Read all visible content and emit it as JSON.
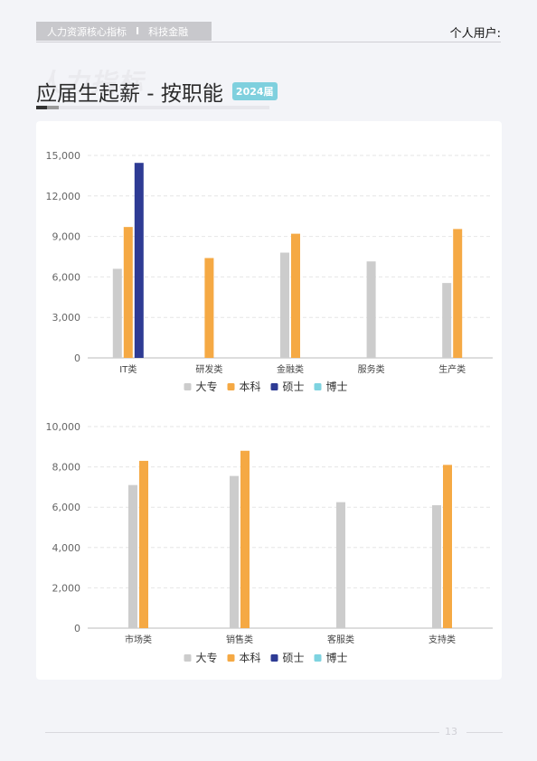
{
  "header": {
    "tag_left": "人力资源核心指标",
    "tag_sep": "I",
    "tag_right": "科技金融",
    "user_label": "个人用户:"
  },
  "watermark": "人力指标",
  "page_title": "应届生起薪 - 按职能",
  "year_badge": "2024届",
  "page_number": "13",
  "colors": {
    "大专": "#cccccc",
    "本科": "#f5a944",
    "硕士": "#2e3b94",
    "博士": "#7ed3e0"
  },
  "chart_data": [
    {
      "type": "bar",
      "categories": [
        "IT类",
        "研发类",
        "金融类",
        "服务类",
        "生产类"
      ],
      "series": [
        {
          "name": "大专",
          "values": [
            6600,
            null,
            7800,
            7150,
            5550
          ]
        },
        {
          "name": "本科",
          "values": [
            9700,
            7400,
            9200,
            null,
            9550
          ]
        },
        {
          "name": "硕士",
          "values": [
            14450,
            null,
            null,
            null,
            null
          ]
        },
        {
          "name": "博士",
          "values": [
            null,
            null,
            null,
            null,
            null
          ]
        }
      ],
      "ylim": [
        0,
        15000
      ],
      "yticks": [
        "0",
        "3,000",
        "6,000",
        "9,000",
        "12,000",
        "15,000"
      ],
      "legend": "bottom-center",
      "grid": true
    },
    {
      "type": "bar",
      "categories": [
        "市场类",
        "销售类",
        "客服类",
        "支持类"
      ],
      "series": [
        {
          "name": "大专",
          "values": [
            7100,
            7550,
            6250,
            6100
          ]
        },
        {
          "name": "本科",
          "values": [
            8300,
            8800,
            null,
            8100
          ]
        },
        {
          "name": "硕士",
          "values": [
            null,
            null,
            null,
            null
          ]
        },
        {
          "name": "博士",
          "values": [
            null,
            null,
            null,
            null
          ]
        }
      ],
      "ylim": [
        0,
        10000
      ],
      "yticks": [
        "0",
        "2,000",
        "4,000",
        "6,000",
        "8,000",
        "10,000"
      ],
      "legend": "bottom-center",
      "grid": true
    }
  ]
}
